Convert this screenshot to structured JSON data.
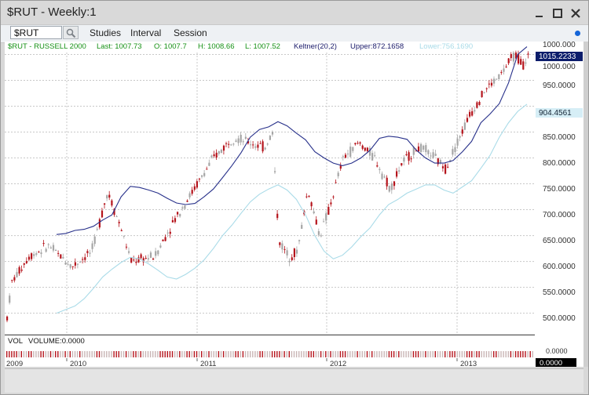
{
  "window": {
    "title": "$RUT - Weekly:1"
  },
  "toolbar": {
    "symbol_value": "$RUT",
    "menu": [
      "Studies",
      "Interval",
      "Session"
    ]
  },
  "chart_header": {
    "symbol_name": "$RUT - RUSSELL 2000",
    "last": "Last: 1007.73",
    "open": "O: 1007.7",
    "high": "H: 1008.66",
    "low": "L: 1007.52",
    "keltner": "Keltner(20,2)",
    "upper": "Upper:872.1658",
    "lower": "Lower:756.1690"
  },
  "price_axis": {
    "ticks": [
      "1000.000",
      "950.0000",
      "900.0000",
      "850.0000",
      "800.0000",
      "750.0000",
      "700.0000",
      "650.0000",
      "600.0000",
      "550.0000",
      "500.0000"
    ],
    "current_price_box": "1015.2233",
    "lower_band_box": "904.4561"
  },
  "volume": {
    "label": "VOL",
    "value_label": "VOLUME:0.0000",
    "axis_tick": "0.0000",
    "current_box": "0.0000"
  },
  "x_axis": {
    "labels": [
      "2009",
      "2010",
      "2011",
      "2012",
      "2013"
    ]
  },
  "colors": {
    "up": "#a6a6a6",
    "down": "#b5141c",
    "upper_band": "#27308a",
    "lower_band": "#a9dbe8",
    "header_green": "#169116",
    "header_navy": "#1b1b6b"
  },
  "chart_data": {
    "type": "candlestick",
    "series": [
      {
        "name": "$RUT - RUSSELL 2000"
      },
      {
        "name": "Upper",
        "values": [
          652,
          654,
          660,
          662,
          668,
          680,
          690,
          725,
          745,
          743,
          738,
          732,
          722,
          713,
          710,
          712,
          725,
          740,
          762,
          785,
          810,
          840,
          855,
          860,
          870,
          862,
          848,
          835,
          812,
          800,
          790,
          785,
          790,
          800,
          815,
          838,
          842,
          840,
          836,
          815,
          800,
          790,
          790,
          795,
          812,
          832,
          868,
          885,
          905,
          945,
          1000,
          1015
        ]
      },
      {
        "name": "Lower",
        "values": [
          500,
          507,
          514,
          528,
          548,
          570,
          585,
          598,
          608,
          605,
          595,
          583,
          570,
          566,
          575,
          587,
          603,
          625,
          650,
          670,
          693,
          715,
          730,
          740,
          748,
          738,
          720,
          690,
          650,
          620,
          605,
          612,
          628,
          648,
          665,
          690,
          710,
          720,
          732,
          740,
          748,
          748,
          738,
          732,
          744,
          756,
          780,
          805,
          840,
          868,
          890,
          904
        ]
      }
    ],
    "x_labels": [
      "2009",
      "2010",
      "2011",
      "2012",
      "2013"
    ],
    "ylim": [
      460,
      1025
    ]
  }
}
